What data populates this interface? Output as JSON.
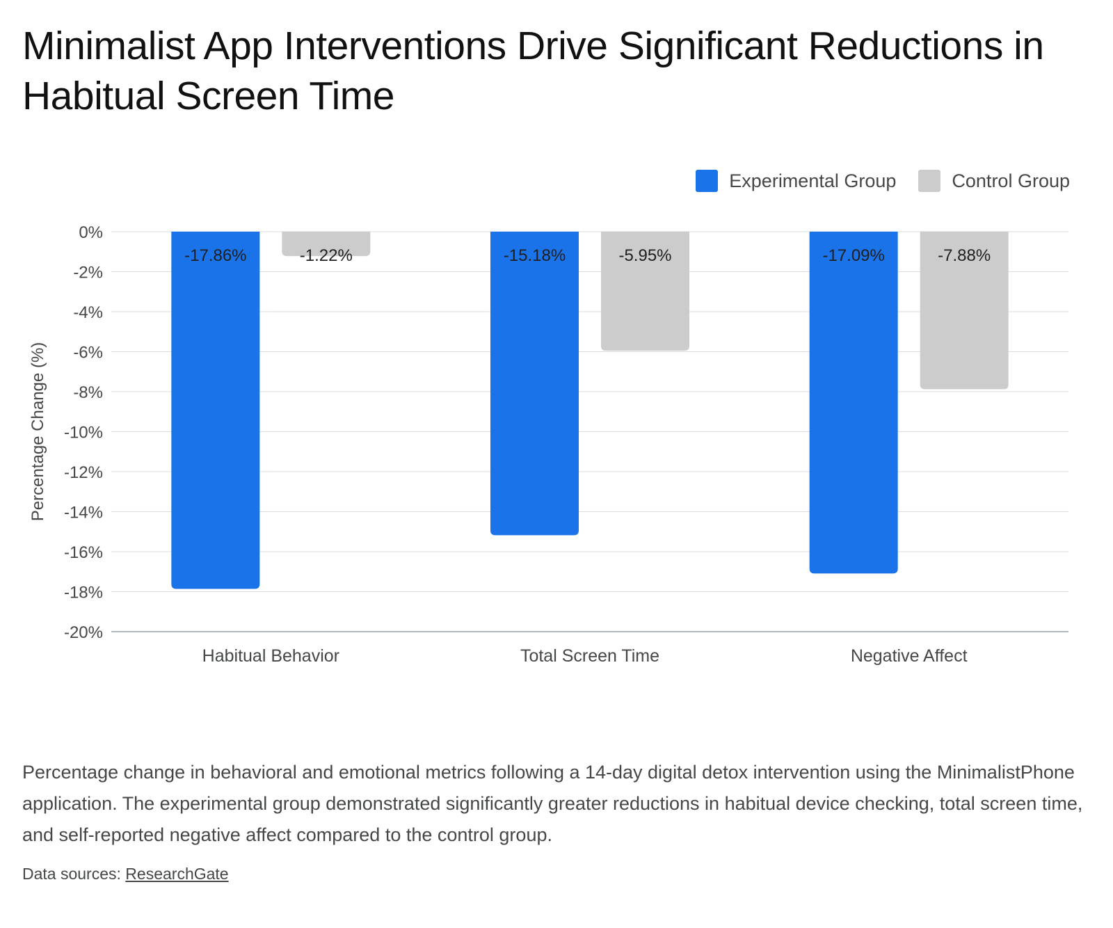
{
  "chart_data": {
    "type": "bar",
    "title": "Minimalist App Interventions Drive Significant Reductions in Habitual Screen Time",
    "ylabel": "Percentage Change (%)",
    "xlabel": "",
    "categories": [
      "Habitual Behavior",
      "Total Screen Time",
      "Negative Affect"
    ],
    "series": [
      {
        "name": "Experimental Group",
        "color": "#1a73e8",
        "values": [
          -17.86,
          -15.18,
          -17.09
        ],
        "labels": [
          "-17.86%",
          "-15.18%",
          "-17.09%"
        ]
      },
      {
        "name": "Control Group",
        "color": "#cccccc",
        "values": [
          -1.22,
          -5.95,
          -7.88
        ],
        "labels": [
          "-1.22%",
          "-5.95%",
          "-7.88%"
        ]
      }
    ],
    "ylim": [
      -20,
      0
    ],
    "yticks": [
      0,
      -2,
      -4,
      -6,
      -8,
      -10,
      -12,
      -14,
      -16,
      -18,
      -20
    ],
    "ytick_labels": [
      "0%",
      "-2%",
      "-4%",
      "-6%",
      "-8%",
      "-10%",
      "-12%",
      "-14%",
      "-16%",
      "-18%",
      "-20%"
    ],
    "grid": true,
    "legend_position": "top-right"
  },
  "caption": "Percentage change in behavioral and emotional metrics following a 14-day digital detox intervention using the MinimalistPhone application. The experimental group demonstrated significantly greater reductions in habitual device checking, total screen time, and self-reported negative affect compared to the control group.",
  "sources": {
    "prefix": "Data sources: ",
    "link_text": "ResearchGate"
  }
}
